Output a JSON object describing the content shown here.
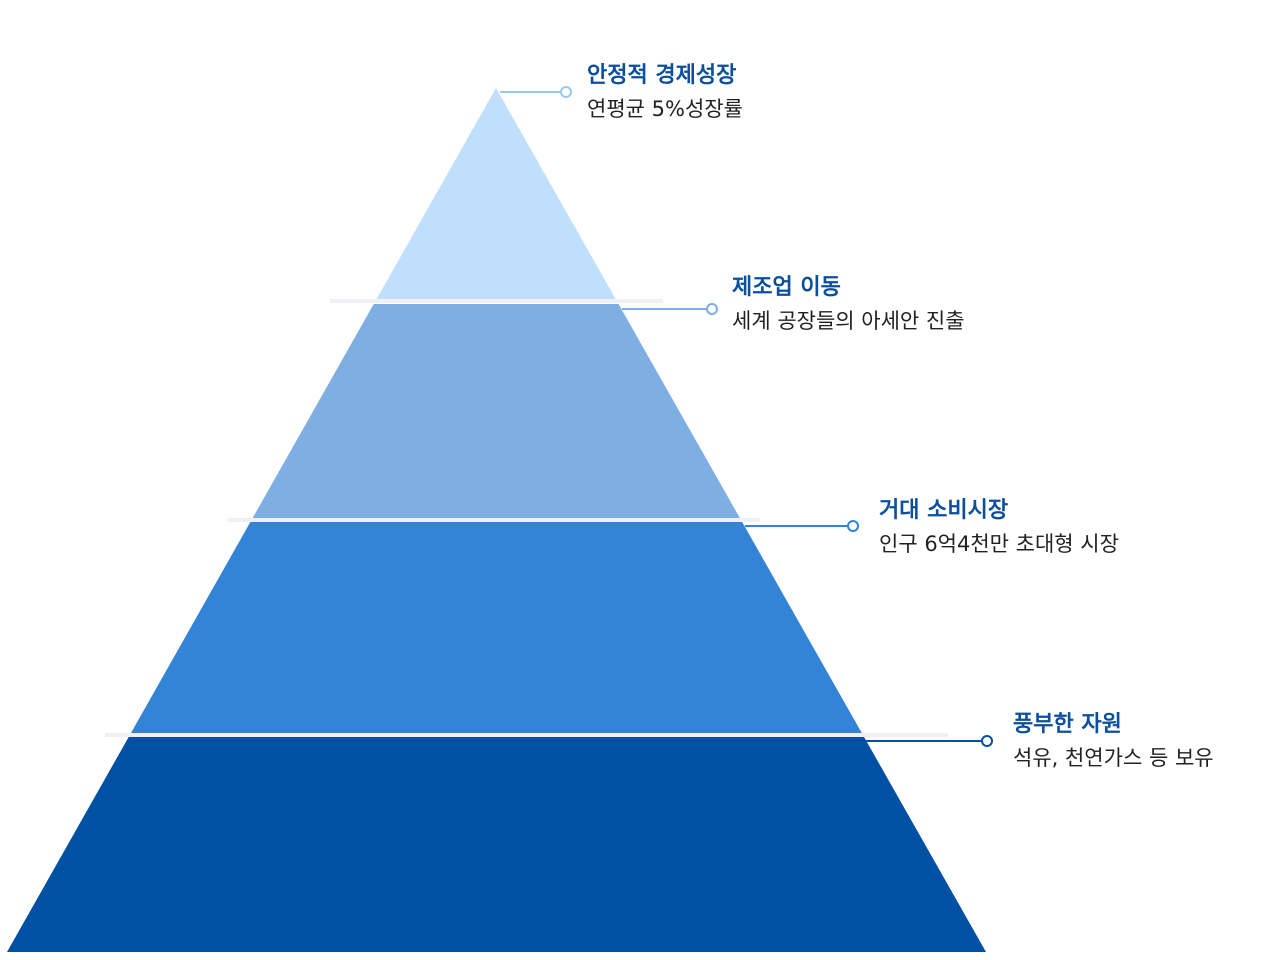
{
  "levels": [
    {
      "title": "안정적 경제성장",
      "description": "연평균 5%성장률"
    },
    {
      "title": "제조업 이동",
      "description": "세계 공장들의 아세안 진출"
    },
    {
      "title": "거대 소비시장",
      "description": "인구 6억4천만 초대형 시장"
    },
    {
      "title": "풍부한 자원",
      "description": "석유, 천연가스 등 보유"
    }
  ]
}
